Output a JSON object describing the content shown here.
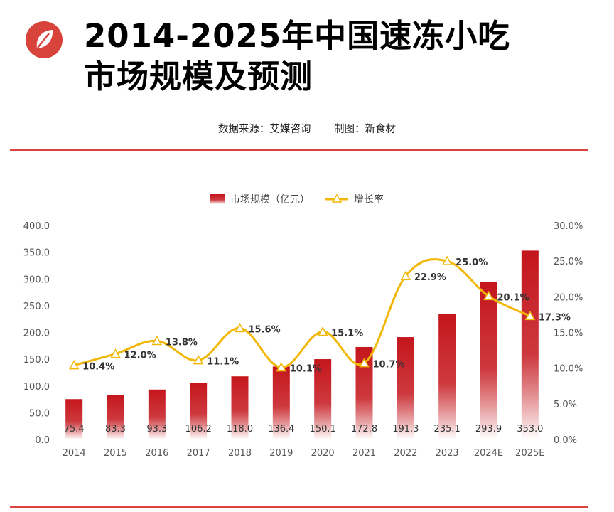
{
  "header": {
    "title_line1": "2014-2025年中国速冻小吃",
    "title_line2": "市场规模及预测",
    "source": "数据来源：艾媒咨询",
    "made_by": "制图：新食材"
  },
  "colors": {
    "bar": "#c4161c",
    "bar_fade": "#ffffff",
    "line": "#f2b705",
    "rule": "#d8443c",
    "logo": "#d8443c"
  },
  "icons": {
    "logo": "leaf-logo-icon"
  },
  "chart_data": {
    "type": "bar",
    "categories": [
      "2014",
      "2015",
      "2016",
      "2017",
      "2018",
      "2019",
      "2020",
      "2021",
      "2022",
      "2023",
      "2024E",
      "2025E"
    ],
    "series": [
      {
        "name": "市场规模（亿元）",
        "type": "bar",
        "axis": "left",
        "values": [
          75.4,
          83.3,
          93.3,
          106.2,
          118.0,
          136.4,
          150.1,
          172.8,
          191.3,
          235.1,
          293.9,
          353.0
        ],
        "labels": [
          "75.4",
          "83.3",
          "93.3",
          "106.2",
          "118.0",
          "136.4",
          "150.1",
          "172.8",
          "191.3",
          "235.1",
          "293.9",
          "353.0"
        ]
      },
      {
        "name": "增长率",
        "type": "line",
        "axis": "right",
        "values": [
          10.4,
          12.0,
          13.8,
          11.1,
          15.6,
          10.1,
          15.1,
          10.7,
          22.9,
          25.0,
          20.1,
          17.3
        ],
        "labels": [
          "10.4%",
          "12.0%",
          "13.8%",
          "11.1%",
          "15.6%",
          "10.1%",
          "15.1%",
          "10.7%",
          "22.9%",
          "25.0%",
          "20.1%",
          "17.3%"
        ]
      }
    ],
    "y_left": {
      "lim": [
        0,
        400
      ],
      "ticks": [
        "0.0",
        "50.0",
        "100.0",
        "150.0",
        "200.0",
        "250.0",
        "300.0",
        "350.0",
        "400.0"
      ]
    },
    "y_right": {
      "lim": [
        0,
        30
      ],
      "ticks": [
        "0.0%",
        "5.0%",
        "10.0%",
        "15.0%",
        "20.0%",
        "25.0%",
        "30.0%"
      ]
    },
    "legend": "top-center",
    "grid": false
  }
}
